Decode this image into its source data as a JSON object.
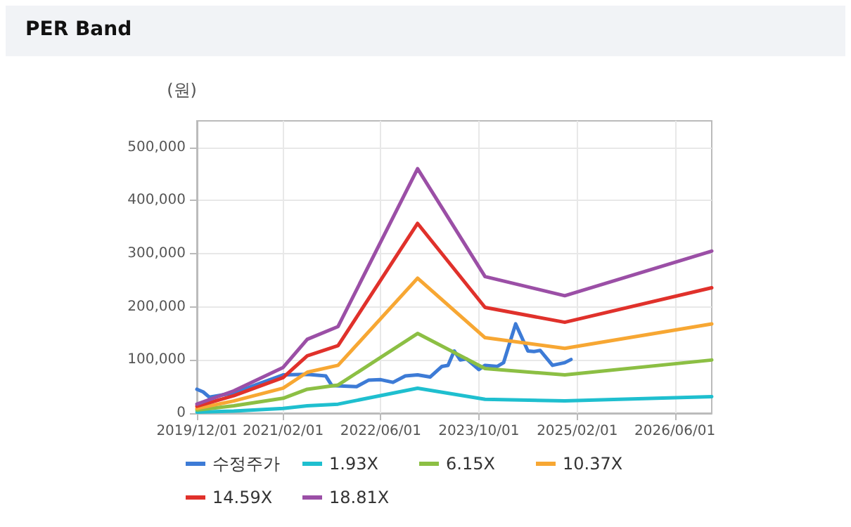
{
  "chart_data": {
    "type": "line",
    "title": "PER Band",
    "ylabel": "(원)",
    "xlim": [
      "2019-12-01",
      "2026-12-01"
    ],
    "xticks": [
      {
        "value": "2019-12-01",
        "label": "2019/12/01"
      },
      {
        "value": "2021-02-01",
        "label": "2021/02/01"
      },
      {
        "value": "2022-06-01",
        "label": "2022/06/01"
      },
      {
        "value": "2023-10-01",
        "label": "2023/10/01"
      },
      {
        "value": "2025-02-01",
        "label": "2025/02/01"
      },
      {
        "value": "2026-06-01",
        "label": "2026/06/01"
      }
    ],
    "ylim": [
      0,
      550000
    ],
    "yticks": [
      {
        "value": 0,
        "label": "0"
      },
      {
        "value": 100000,
        "label": "100,000"
      },
      {
        "value": 200000,
        "label": "200,000"
      },
      {
        "value": 300000,
        "label": "300,000"
      },
      {
        "value": 400000,
        "label": "400,000"
      },
      {
        "value": 500000,
        "label": "500,000"
      }
    ],
    "grid": true,
    "legend": "bottom",
    "marker": "none",
    "line_style": "solid",
    "series": [
      {
        "name": "수정주가",
        "color": "#3d7bd6",
        "x": [
          "2019-12-01",
          "2020-01-01",
          "2020-02-01",
          "2020-06-01",
          "2020-10-01",
          "2021-02-01",
          "2021-06-01",
          "2021-09-01",
          "2021-10-01",
          "2022-02-01",
          "2022-04-01",
          "2022-06-01",
          "2022-08-01",
          "2022-10-01",
          "2022-12-01",
          "2023-02-01",
          "2023-04-01",
          "2023-05-01",
          "2023-06-01",
          "2023-07-01",
          "2023-08-01",
          "2023-10-01",
          "2023-11-01",
          "2024-01-01",
          "2024-02-01",
          "2024-04-01",
          "2024-06-01",
          "2024-07-01",
          "2024-08-01",
          "2024-10-01",
          "2024-12-01",
          "2025-01-01"
        ],
        "values": [
          45000,
          40000,
          30000,
          38000,
          55000,
          72000,
          73000,
          70000,
          52000,
          50000,
          62000,
          63000,
          58000,
          70000,
          72000,
          68000,
          88000,
          90000,
          117000,
          100000,
          102000,
          82000,
          90000,
          88000,
          95000,
          168000,
          117000,
          116000,
          118000,
          90000,
          95000,
          101000
        ]
      },
      {
        "name": "1.93X",
        "color": "#1fbfcf",
        "x": [
          "2019-12-01",
          "2020-06-01",
          "2021-02-01",
          "2021-06-01",
          "2021-11-01",
          "2022-12-01",
          "2023-11-01",
          "2024-12-01",
          "2026-12-01"
        ],
        "values": [
          2000,
          4000,
          9000,
          14000,
          17000,
          47000,
          26000,
          23000,
          31000
        ]
      },
      {
        "name": "6.15X",
        "color": "#8cbf44",
        "x": [
          "2019-12-01",
          "2020-06-01",
          "2021-02-01",
          "2021-06-01",
          "2021-11-01",
          "2022-12-01",
          "2023-11-01",
          "2024-12-01",
          "2026-12-01"
        ],
        "values": [
          6000,
          14000,
          28000,
          45000,
          53000,
          150000,
          84000,
          72000,
          100000
        ]
      },
      {
        "name": "10.37X",
        "color": "#f7a733",
        "x": [
          "2019-12-01",
          "2020-06-01",
          "2021-02-01",
          "2021-06-01",
          "2021-11-01",
          "2022-12-01",
          "2023-11-01",
          "2024-12-01",
          "2026-12-01"
        ],
        "values": [
          9000,
          23000,
          47000,
          77000,
          90000,
          254000,
          142000,
          122000,
          168000
        ]
      },
      {
        "name": "14.59X",
        "color": "#e0312b",
        "x": [
          "2019-12-01",
          "2020-06-01",
          "2021-02-01",
          "2021-06-01",
          "2021-11-01",
          "2022-12-01",
          "2023-11-01",
          "2024-12-01",
          "2026-12-01"
        ],
        "values": [
          13000,
          33000,
          67000,
          108000,
          127000,
          357000,
          199000,
          171000,
          236000
        ]
      },
      {
        "name": "18.81X",
        "color": "#9b4fa6",
        "x": [
          "2019-12-01",
          "2020-06-01",
          "2021-02-01",
          "2021-06-01",
          "2021-11-01",
          "2022-12-01",
          "2023-11-01",
          "2024-12-01",
          "2026-12-01"
        ],
        "values": [
          17000,
          42000,
          86000,
          139000,
          163000,
          460000,
          257000,
          221000,
          305000
        ]
      }
    ]
  }
}
